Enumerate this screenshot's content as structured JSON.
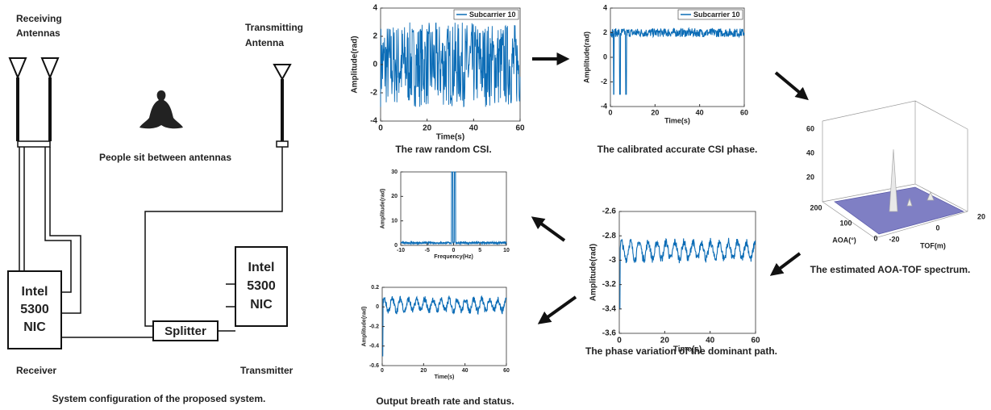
{
  "setup": {
    "rx_antennas": [
      "Receiving",
      "Antennas"
    ],
    "tx_antenna": [
      "Transmitting",
      "Antenna"
    ],
    "people": "People sit between antennas",
    "receiver_nic": [
      "Intel",
      "5300",
      "NIC"
    ],
    "transmitter_nic": [
      "Intel",
      "5300",
      "NIC"
    ],
    "splitter": "Splitter",
    "receiver": "Receiver",
    "transmitter": "Transmitter",
    "caption": "System configuration of the proposed system."
  },
  "panels": [
    {
      "caption": "The raw random CSI.",
      "xlabel": "Time(s)",
      "ylabel": "Amplitude(rad)",
      "legend": "Subcarrier 10",
      "xlim": [
        0,
        60
      ],
      "ylim": [
        -4,
        4
      ],
      "xticks": [
        0,
        20,
        40,
        60
      ],
      "yticks": [
        -4,
        -2,
        0,
        2,
        4
      ]
    },
    {
      "caption": "The calibrated accurate CSI phase.",
      "xlabel": "Time(s)",
      "ylabel": "Amplitude(rad)",
      "legend": "Subcarrier 10",
      "xlim": [
        0,
        60
      ],
      "ylim": [
        -4,
        4
      ],
      "xticks": [
        0,
        20,
        40,
        60
      ],
      "yticks": [
        -4,
        -2,
        0,
        2,
        4
      ]
    },
    {
      "caption": "The phase variation of  the dominant path.",
      "xlabel": "Time(s)",
      "ylabel": "Amplitude(rad)",
      "xlim": [
        0,
        60
      ],
      "ylim": [
        -3.6,
        -2.6
      ],
      "xticks": [
        0,
        20,
        40,
        60
      ],
      "yticks": [
        -3.6,
        -3.4,
        -3.2,
        -3,
        -2.8,
        -2.6
      ]
    },
    {
      "xlabel": "Frequency(Hz)",
      "ylabel": "Amplitude(rad)",
      "xlim": [
        -10,
        10
      ],
      "ylim": [
        0,
        30
      ],
      "xticks": [
        -10,
        -5,
        0,
        5,
        10
      ],
      "yticks": [
        0,
        10,
        20,
        30
      ]
    },
    {
      "caption": "Output breath rate and status.",
      "xlabel": "Time(s)",
      "ylabel": "Amplitude(rad)",
      "xlim": [
        0,
        60
      ],
      "ylim": [
        -0.6,
        0.2
      ],
      "xticks": [
        0,
        20,
        40,
        60
      ],
      "yticks": [
        -0.6,
        -0.4,
        -0.2,
        0,
        0.2
      ]
    }
  ],
  "spectrum": {
    "caption": "The estimated AOA-TOF spectrum.",
    "zticks": [
      20,
      40,
      60
    ],
    "aoa_ticks": [
      0,
      100,
      200
    ],
    "tof_ticks": [
      -20,
      0,
      20
    ],
    "aoa_label": "AOA(°)",
    "tof_label": "TOF(m)"
  }
}
